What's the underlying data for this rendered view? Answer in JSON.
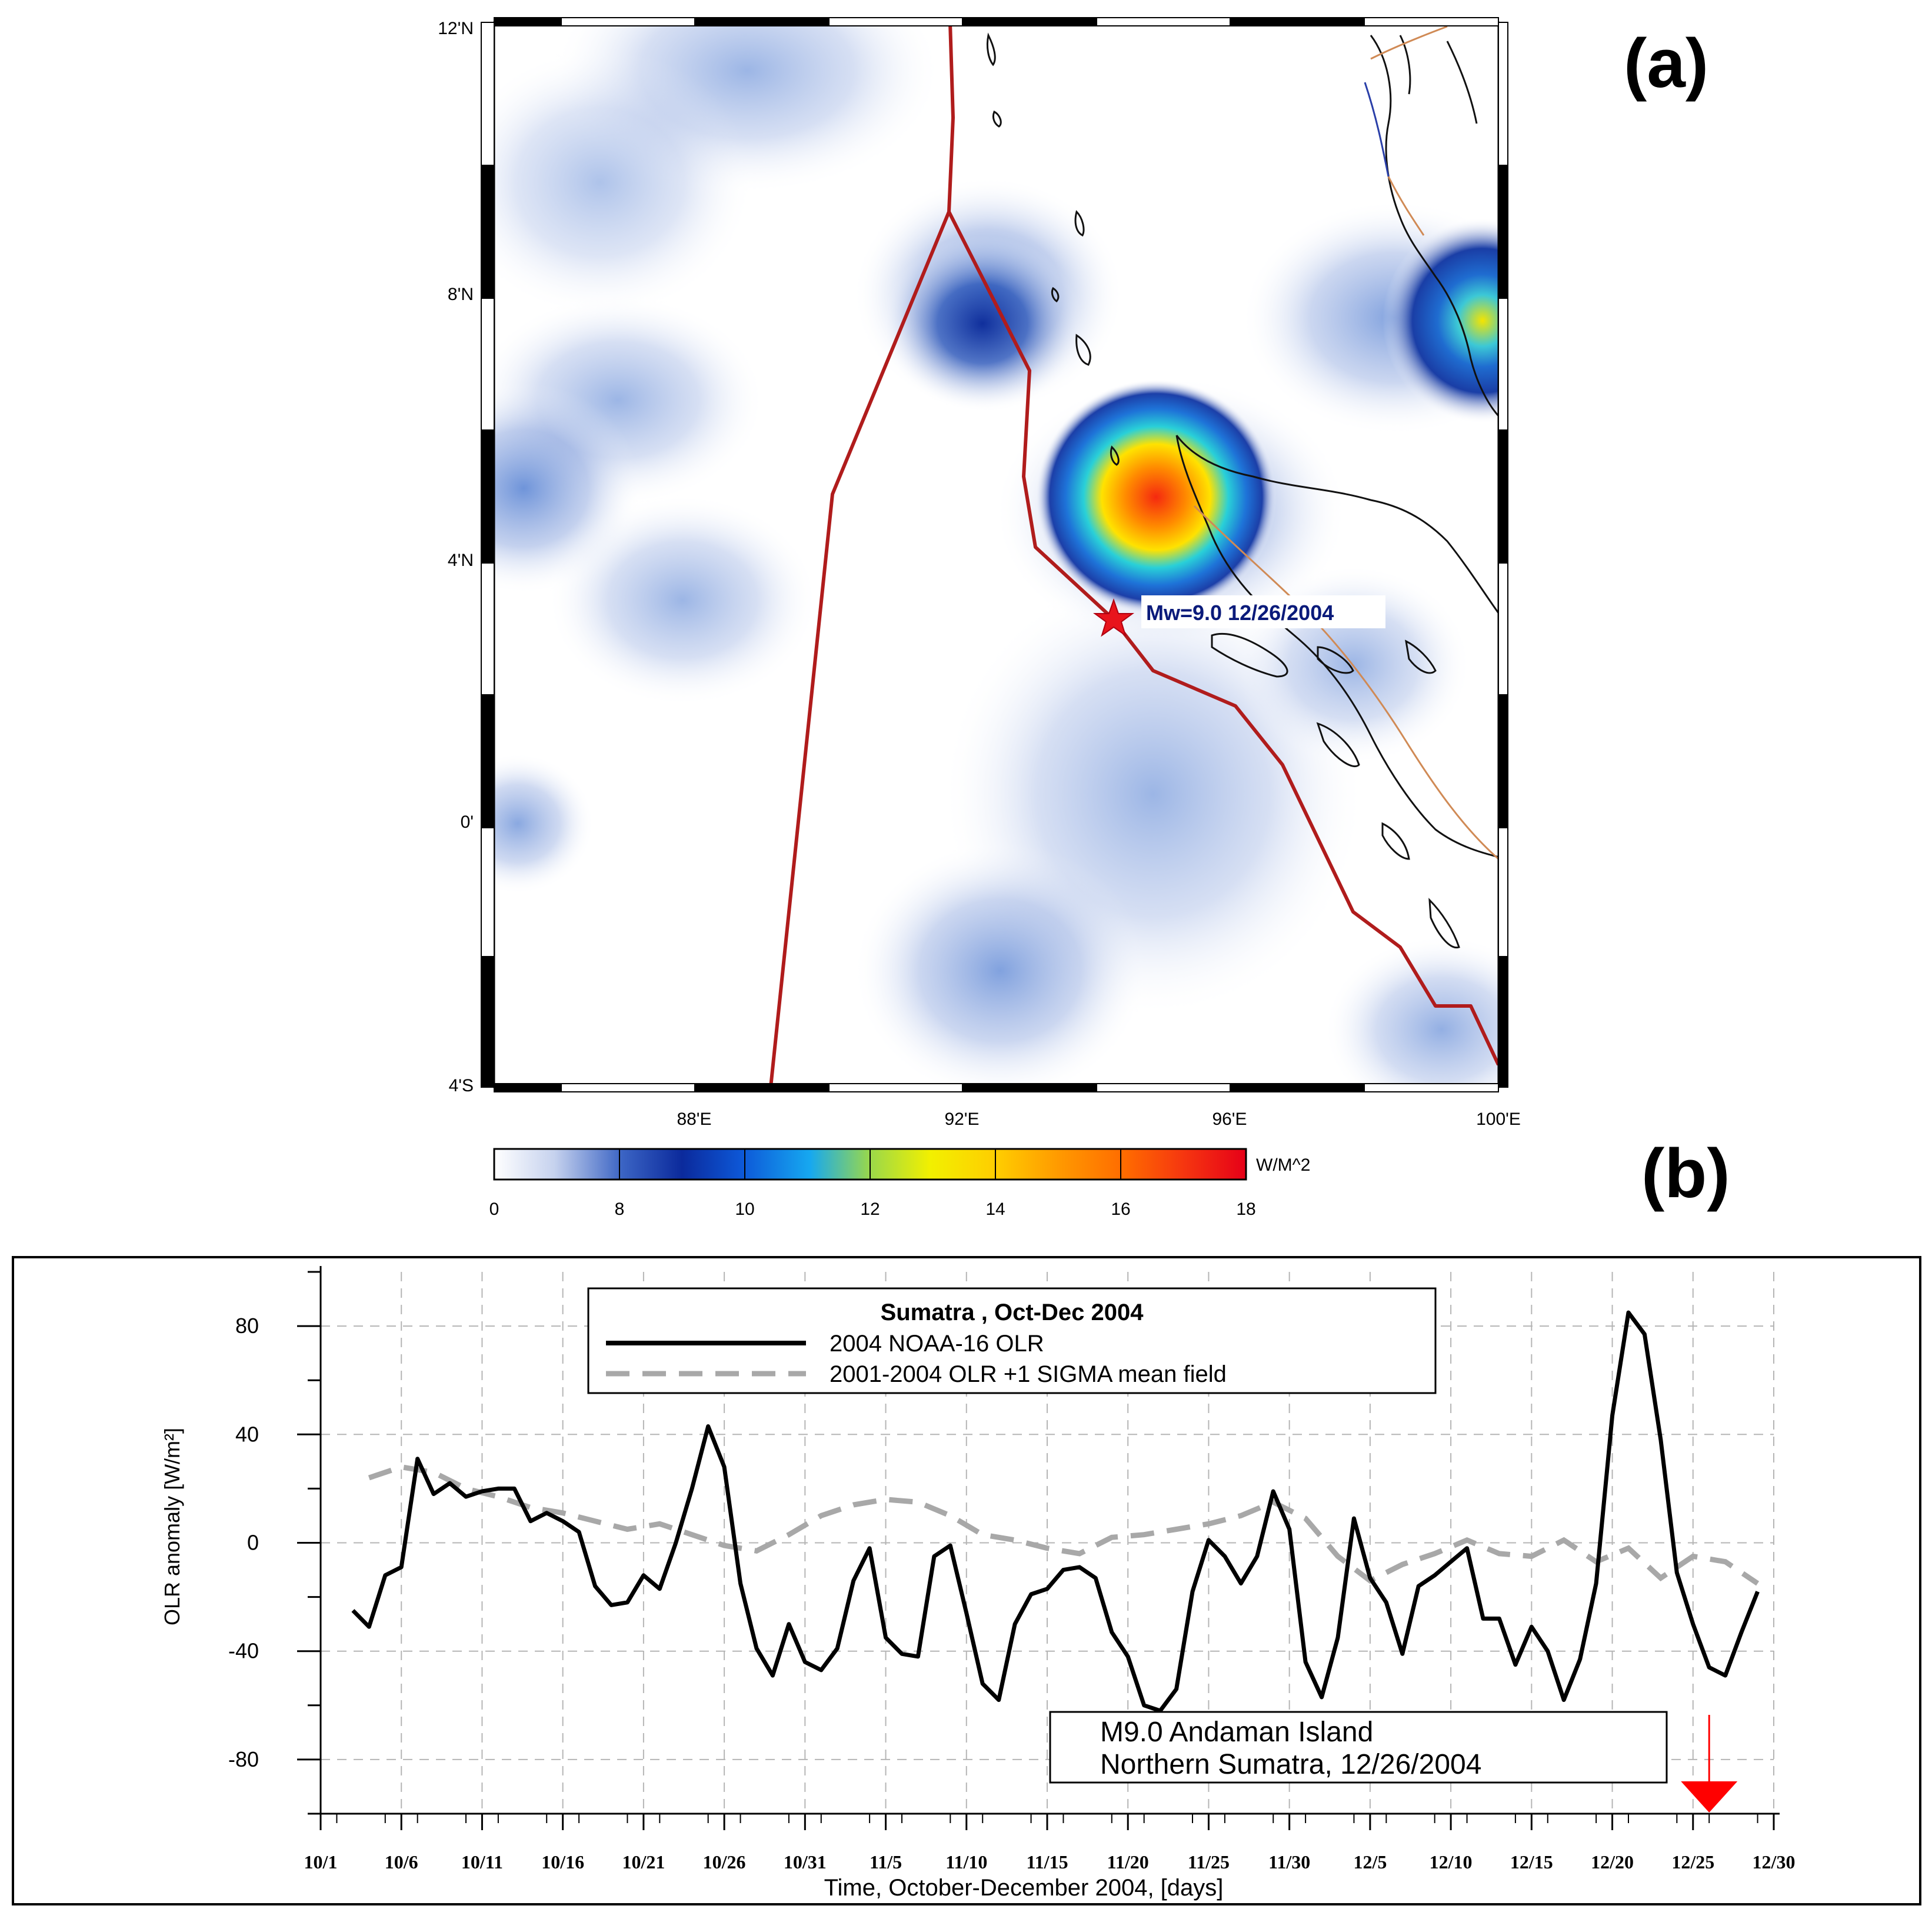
{
  "panel_a": {
    "label": "(a)",
    "lat_ticks": [
      "12'N",
      "8'N",
      "4'N",
      "0'",
      "4'S"
    ],
    "lon_ticks": [
      "88'E",
      "92'E",
      "96'E",
      "100'E"
    ],
    "earthquake_label": "Mw=9.0 12/26/2004",
    "colorbar": {
      "unit": "W/M^2",
      "ticks": [
        "0",
        "8",
        "10",
        "12",
        "14",
        "16",
        "18"
      ]
    },
    "colors": {
      "boundary": "#b01c1c",
      "star": "#e8141c",
      "coast": "#111111",
      "fault": "#d08a55",
      "blue_fault": "#2a3fa8"
    }
  },
  "panel_b": {
    "label": "(b)",
    "legend": {
      "title": "Sumatra , Oct-Dec 2004",
      "series1": "2004 NOAA-16 OLR",
      "series2": "2001-2004 OLR +1 SIGMA mean field"
    },
    "annotation": {
      "line1": "M9.0  Andaman Island",
      "line2": "Northern Sumatra, 12/26/2004"
    }
  },
  "chart_data": {
    "type": "line",
    "title": "Sumatra , Oct-Dec 2004",
    "xlabel": "Time, October-December 2004, [days]",
    "ylabel": "OLR anomaly [W/m²]",
    "ylim": [
      -100,
      100
    ],
    "xlim": [
      0,
      90
    ],
    "yticks": [
      -80,
      -40,
      0,
      40,
      80
    ],
    "xtick_labels": [
      "10/1",
      "10/6",
      "10/11",
      "10/16",
      "10/21",
      "10/26",
      "10/31",
      "11/5",
      "11/10",
      "11/15",
      "11/20",
      "11/25",
      "11/30",
      "12/5",
      "12/10",
      "12/15",
      "12/20",
      "12/25",
      "12/30"
    ],
    "event_day": 86,
    "series": [
      {
        "name": "2004 NOAA-16 OLR",
        "style": "solid",
        "color": "#000000",
        "values": [
          [
            2,
            -25
          ],
          [
            3,
            -31
          ],
          [
            4,
            -12
          ],
          [
            5,
            -9
          ],
          [
            6,
            31
          ],
          [
            7,
            18
          ],
          [
            8,
            22
          ],
          [
            9,
            17
          ],
          [
            10,
            19
          ],
          [
            11,
            20
          ],
          [
            12,
            20
          ],
          [
            13,
            8
          ],
          [
            14,
            11
          ],
          [
            15,
            8
          ],
          [
            16,
            4
          ],
          [
            17,
            -16
          ],
          [
            18,
            -23
          ],
          [
            19,
            -22
          ],
          [
            20,
            -12
          ],
          [
            21,
            -17
          ],
          [
            22,
            0
          ],
          [
            23,
            20
          ],
          [
            24,
            43
          ],
          [
            25,
            28
          ],
          [
            26,
            -15
          ],
          [
            27,
            -39
          ],
          [
            28,
            -49
          ],
          [
            29,
            -30
          ],
          [
            30,
            -44
          ],
          [
            31,
            -47
          ],
          [
            32,
            -39
          ],
          [
            33,
            -14
          ],
          [
            34,
            -2
          ],
          [
            35,
            -35
          ],
          [
            36,
            -41
          ],
          [
            37,
            -42
          ],
          [
            38,
            -5
          ],
          [
            39,
            -1
          ],
          [
            40,
            -26
          ],
          [
            41,
            -52
          ],
          [
            42,
            -58
          ],
          [
            43,
            -30
          ],
          [
            44,
            -19
          ],
          [
            45,
            -17
          ],
          [
            46,
            -10
          ],
          [
            47,
            -9
          ],
          [
            48,
            -13
          ],
          [
            49,
            -33
          ],
          [
            50,
            -42
          ],
          [
            51,
            -60
          ],
          [
            52,
            -62
          ],
          [
            53,
            -54
          ],
          [
            54,
            -18
          ],
          [
            55,
            1
          ],
          [
            56,
            -5
          ],
          [
            57,
            -15
          ],
          [
            58,
            -5
          ],
          [
            59,
            19
          ],
          [
            60,
            5
          ],
          [
            61,
            -44
          ],
          [
            62,
            -57
          ],
          [
            63,
            -35
          ],
          [
            64,
            9
          ],
          [
            65,
            -13
          ],
          [
            66,
            -22
          ],
          [
            67,
            -41
          ],
          [
            68,
            -16
          ],
          [
            69,
            -12
          ],
          [
            70,
            -7
          ],
          [
            71,
            -2
          ],
          [
            72,
            -28
          ],
          [
            73,
            -28
          ],
          [
            74,
            -45
          ],
          [
            75,
            -31
          ],
          [
            76,
            -40
          ],
          [
            77,
            -58
          ],
          [
            78,
            -43
          ],
          [
            79,
            -15
          ],
          [
            80,
            47
          ],
          [
            81,
            85
          ],
          [
            82,
            77
          ],
          [
            83,
            38
          ],
          [
            84,
            -11
          ],
          [
            85,
            -30
          ],
          [
            86,
            -46
          ],
          [
            87,
            -49
          ],
          [
            88,
            -33
          ],
          [
            89,
            -18
          ]
        ]
      },
      {
        "name": "2001-2004 OLR +1 SIGMA mean field",
        "style": "dashed",
        "color": "#a8a8a8",
        "values": [
          [
            3,
            24
          ],
          [
            5,
            28
          ],
          [
            7,
            26
          ],
          [
            9,
            20
          ],
          [
            11,
            17
          ],
          [
            13,
            13
          ],
          [
            15,
            11
          ],
          [
            17,
            8
          ],
          [
            19,
            5
          ],
          [
            21,
            7
          ],
          [
            23,
            3
          ],
          [
            25,
            -1
          ],
          [
            27,
            -3
          ],
          [
            29,
            3
          ],
          [
            31,
            10
          ],
          [
            33,
            14
          ],
          [
            35,
            16
          ],
          [
            37,
            15
          ],
          [
            39,
            10
          ],
          [
            41,
            3
          ],
          [
            43,
            1
          ],
          [
            45,
            -2
          ],
          [
            47,
            -4
          ],
          [
            49,
            2
          ],
          [
            51,
            3
          ],
          [
            53,
            5
          ],
          [
            55,
            7
          ],
          [
            57,
            10
          ],
          [
            59,
            15
          ],
          [
            61,
            9
          ],
          [
            63,
            -5
          ],
          [
            65,
            -14
          ],
          [
            67,
            -8
          ],
          [
            69,
            -4
          ],
          [
            71,
            1
          ],
          [
            73,
            -4
          ],
          [
            75,
            -5
          ],
          [
            77,
            1
          ],
          [
            79,
            -7
          ],
          [
            81,
            -2
          ],
          [
            83,
            -13
          ],
          [
            85,
            -5
          ],
          [
            87,
            -7
          ],
          [
            89,
            -15
          ]
        ]
      }
    ]
  }
}
